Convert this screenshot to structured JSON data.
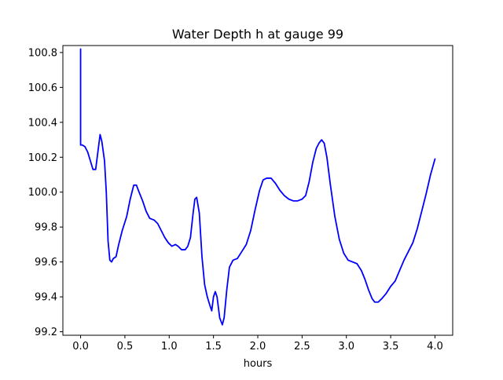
{
  "chart_data": {
    "type": "line",
    "title": "Water Depth h at gauge 99",
    "xlabel": "hours",
    "ylabel": "",
    "xlim": [
      -0.2,
      4.2
    ],
    "ylim": [
      99.18,
      100.84
    ],
    "xticks": [
      0.0,
      0.5,
      1.0,
      1.5,
      2.0,
      2.5,
      3.0,
      3.5,
      4.0
    ],
    "xtick_labels": [
      "0.0",
      "0.5",
      "1.0",
      "1.5",
      "2.0",
      "2.5",
      "3.0",
      "3.5",
      "4.0"
    ],
    "yticks": [
      99.2,
      99.4,
      99.6,
      99.8,
      100.0,
      100.2,
      100.4,
      100.6,
      100.8
    ],
    "ytick_labels": [
      "99.2",
      "99.4",
      "99.6",
      "99.8",
      "100.0",
      "100.2",
      "100.4",
      "100.6",
      "100.8"
    ],
    "grid": false,
    "legend": "none",
    "series": [
      {
        "color": "#0000ff",
        "x": [
          0.0,
          0.0,
          0.001,
          0.02,
          0.05,
          0.08,
          0.11,
          0.14,
          0.17,
          0.2,
          0.22,
          0.24,
          0.27,
          0.29,
          0.31,
          0.33,
          0.35,
          0.37,
          0.4,
          0.43,
          0.47,
          0.52,
          0.56,
          0.6,
          0.63,
          0.66,
          0.7,
          0.74,
          0.78,
          0.83,
          0.87,
          0.91,
          0.95,
          0.99,
          1.03,
          1.07,
          1.1,
          1.14,
          1.18,
          1.21,
          1.24,
          1.27,
          1.29,
          1.31,
          1.34,
          1.37,
          1.4,
          1.43,
          1.46,
          1.48,
          1.5,
          1.52,
          1.54,
          1.57,
          1.6,
          1.62,
          1.65,
          1.68,
          1.72,
          1.77,
          1.82,
          1.87,
          1.92,
          1.97,
          2.02,
          2.06,
          2.1,
          2.15,
          2.2,
          2.25,
          2.3,
          2.35,
          2.4,
          2.45,
          2.5,
          2.54,
          2.58,
          2.62,
          2.66,
          2.69,
          2.72,
          2.75,
          2.78,
          2.82,
          2.87,
          2.92,
          2.97,
          3.02,
          3.07,
          3.12,
          3.17,
          3.21,
          3.25,
          3.29,
          3.32,
          3.36,
          3.4,
          3.45,
          3.5,
          3.55,
          3.6,
          3.65,
          3.7,
          3.75,
          3.8,
          3.85,
          3.9,
          3.95,
          4.0
        ],
        "y": [
          100.82,
          100.27,
          100.27,
          100.27,
          100.26,
          100.23,
          100.18,
          100.13,
          100.13,
          100.25,
          100.33,
          100.29,
          100.18,
          100.0,
          99.72,
          99.61,
          99.6,
          99.62,
          99.63,
          99.7,
          99.78,
          99.86,
          99.96,
          100.04,
          100.04,
          100.0,
          99.95,
          99.89,
          99.85,
          99.84,
          99.82,
          99.78,
          99.74,
          99.71,
          99.69,
          99.7,
          99.69,
          99.67,
          99.67,
          99.69,
          99.74,
          99.88,
          99.96,
          99.97,
          99.88,
          99.63,
          99.47,
          99.4,
          99.35,
          99.32,
          99.4,
          99.43,
          99.4,
          99.28,
          99.24,
          99.28,
          99.44,
          99.57,
          99.61,
          99.62,
          99.66,
          99.7,
          99.78,
          99.9,
          100.01,
          100.07,
          100.08,
          100.08,
          100.05,
          100.01,
          99.98,
          99.96,
          99.95,
          99.95,
          99.96,
          99.98,
          100.06,
          100.17,
          100.25,
          100.28,
          100.3,
          100.28,
          100.2,
          100.04,
          99.86,
          99.73,
          99.65,
          99.61,
          99.6,
          99.59,
          99.55,
          99.5,
          99.44,
          99.39,
          99.37,
          99.37,
          99.39,
          99.42,
          99.46,
          99.49,
          99.55,
          99.61,
          99.66,
          99.71,
          99.79,
          99.89,
          99.99,
          100.1,
          100.19
        ]
      }
    ]
  }
}
